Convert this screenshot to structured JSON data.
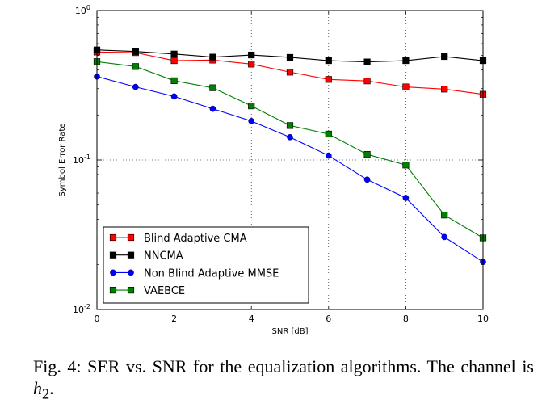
{
  "chart_data": {
    "type": "line",
    "title": "",
    "xlabel": "SNR [dB]",
    "ylabel": "Symbol Error Rate",
    "x": [
      0,
      1,
      2,
      3,
      4,
      5,
      6,
      7,
      8,
      9,
      10
    ],
    "xlim": [
      0,
      10
    ],
    "ylim": [
      0.01,
      1
    ],
    "yscale": "log",
    "grid": true,
    "x_ticks": [
      "0",
      "2",
      "4",
      "6",
      "8",
      "10"
    ],
    "y_ticks": [
      {
        "base": "10",
        "exp": "0"
      },
      {
        "base": "10",
        "exp": "-1"
      },
      {
        "base": "10",
        "exp": "-2"
      }
    ],
    "legend_position": "lower-left",
    "series": [
      {
        "name": "Blind Adaptive CMA",
        "color": "#ff0000",
        "marker": "square",
        "values": [
          0.528,
          0.523,
          0.462,
          0.466,
          0.438,
          0.387,
          0.346,
          0.338,
          0.308,
          0.298,
          0.275
        ]
      },
      {
        "name": "NNCMA",
        "color": "#000000",
        "marker": "square",
        "values": [
          0.545,
          0.532,
          0.512,
          0.488,
          0.504,
          0.486,
          0.462,
          0.453,
          0.462,
          0.492,
          0.462
        ]
      },
      {
        "name": "Non Blind Adaptive MMSE",
        "color": "#0000ff",
        "marker": "circle",
        "values": [
          0.362,
          0.308,
          0.266,
          0.22,
          0.182,
          0.142,
          0.107,
          0.0739,
          0.0557,
          0.0305,
          0.0208
        ]
      },
      {
        "name": "VAEBCE",
        "color": "#007f00",
        "marker": "square",
        "values": [
          0.455,
          0.422,
          0.339,
          0.304,
          0.23,
          0.17,
          0.149,
          0.109,
          0.0925,
          0.0428,
          0.0301
        ]
      }
    ]
  },
  "caption": {
    "prefix": "Fig. 4: SER vs. SNR for the equalization algorithms. The channel is ",
    "var": "h",
    "sub": "2",
    "suffix": "."
  }
}
